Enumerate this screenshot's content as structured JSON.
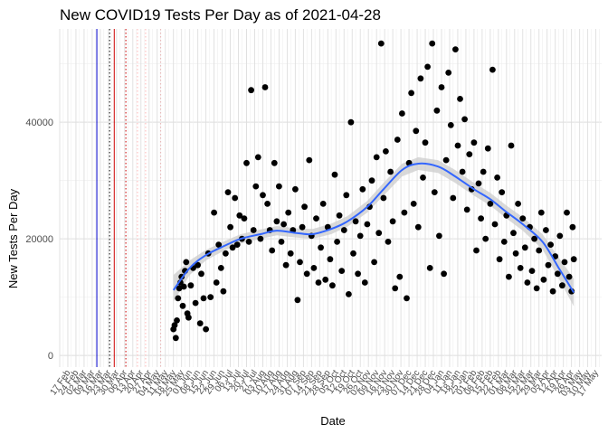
{
  "chart_data": {
    "type": "scatter",
    "title": "New COVID19 Tests Per Day as of 2021-04-28",
    "xlabel": "Date",
    "ylabel": "New Tests Per Day",
    "xlim": [
      "2020-02-10",
      "2021-05-22"
    ],
    "ylim": [
      -2000,
      56000
    ],
    "y_ticks": [
      0,
      20000,
      40000
    ],
    "y_tick_labels": [
      "0",
      "20000",
      "40000"
    ],
    "x_tick_labels": [
      "17 Feb",
      "24 Feb",
      "02 Mar",
      "09 Mar",
      "16 Mar",
      "23 Mar",
      "30 Mar",
      "06 Apr",
      "13 Apr",
      "20 Apr",
      "27 Apr",
      "04 May",
      "11 May",
      "18 May",
      "25 May",
      "01 Jun",
      "08 Jun",
      "15 Jun",
      "22 Jun",
      "29 Jun",
      "06 Jul",
      "13 Jul",
      "20 Jul",
      "27 Jul",
      "03 Aug",
      "10 Aug",
      "17 Aug",
      "24 Aug",
      "31 Aug",
      "07 Sep",
      "14 Sep",
      "21 Sep",
      "28 Sep",
      "05 Oct",
      "12 Oct",
      "19 Oct",
      "26 Oct",
      "02 Nov",
      "09 Nov",
      "16 Nov",
      "23 Nov",
      "30 Nov",
      "07 Dec",
      "14 Dec",
      "21 Dec",
      "28 Dec",
      "04 Jan",
      "11 Jan",
      "18 Jan",
      "25 Jan",
      "01 Feb",
      "08 Feb",
      "15 Feb",
      "22 Feb",
      "01 Mar",
      "08 Mar",
      "15 Mar",
      "22 Mar",
      "29 Mar",
      "05 Apr",
      "12 Apr",
      "19 Apr",
      "26 Apr",
      "03 May",
      "10 May",
      "17 May"
    ],
    "x_tick_start": "2020-02-17",
    "x_tick_step_days": 7,
    "grid": true,
    "legend": "none",
    "vlines": [
      {
        "x": "2020-03-13",
        "color": "#0000cc",
        "style": "solid"
      },
      {
        "x": "2020-03-24",
        "color": "#000000",
        "style": "dotted"
      },
      {
        "x": "2020-03-28",
        "color": "#cc0000",
        "style": "solid"
      },
      {
        "x": "2020-04-07",
        "color": "#cc0000",
        "style": "dotted"
      },
      {
        "x": "2020-04-17",
        "color": "#ffb3b3",
        "style": "dotted"
      },
      {
        "x": "2020-04-24",
        "color": "#ffb3b3",
        "style": "dotted"
      },
      {
        "x": "2020-05-07",
        "color": "#e6b3b3",
        "style": "dotted"
      }
    ],
    "points": [
      {
        "x": "2020-05-18",
        "y": 4500
      },
      {
        "x": "2020-05-19",
        "y": 5200
      },
      {
        "x": "2020-05-20",
        "y": 3000
      },
      {
        "x": "2020-05-21",
        "y": 6000
      },
      {
        "x": "2020-05-22",
        "y": 9800
      },
      {
        "x": "2020-05-23",
        "y": 11500
      },
      {
        "x": "2020-05-24",
        "y": 12500
      },
      {
        "x": "2020-05-25",
        "y": 13500
      },
      {
        "x": "2020-05-26",
        "y": 8500
      },
      {
        "x": "2020-05-27",
        "y": 11800
      },
      {
        "x": "2020-05-28",
        "y": 14500
      },
      {
        "x": "2020-05-29",
        "y": 16000
      },
      {
        "x": "2020-05-30",
        "y": 7200
      },
      {
        "x": "2020-05-31",
        "y": 6500
      },
      {
        "x": "2020-06-02",
        "y": 12000
      },
      {
        "x": "2020-06-04",
        "y": 15000
      },
      {
        "x": "2020-06-06",
        "y": 9000
      },
      {
        "x": "2020-06-08",
        "y": 15500
      },
      {
        "x": "2020-06-10",
        "y": 5500
      },
      {
        "x": "2020-06-11",
        "y": 14000
      },
      {
        "x": "2020-06-13",
        "y": 9800
      },
      {
        "x": "2020-06-15",
        "y": 4500
      },
      {
        "x": "2020-06-17",
        "y": 17500
      },
      {
        "x": "2020-06-19",
        "y": 10000
      },
      {
        "x": "2020-06-22",
        "y": 24500
      },
      {
        "x": "2020-06-24",
        "y": 12500
      },
      {
        "x": "2020-06-26",
        "y": 19000
      },
      {
        "x": "2020-06-28",
        "y": 15000
      },
      {
        "x": "2020-06-30",
        "y": 11000
      },
      {
        "x": "2020-07-02",
        "y": 17500
      },
      {
        "x": "2020-07-04",
        "y": 28000
      },
      {
        "x": "2020-07-06",
        "y": 22000
      },
      {
        "x": "2020-07-08",
        "y": 18500
      },
      {
        "x": "2020-07-10",
        "y": 27000
      },
      {
        "x": "2020-07-12",
        "y": 19000
      },
      {
        "x": "2020-07-14",
        "y": 24000
      },
      {
        "x": "2020-07-16",
        "y": 20000
      },
      {
        "x": "2020-07-18",
        "y": 23500
      },
      {
        "x": "2020-07-20",
        "y": 33000
      },
      {
        "x": "2020-07-22",
        "y": 19500
      },
      {
        "x": "2020-07-24",
        "y": 45500
      },
      {
        "x": "2020-07-26",
        "y": 21500
      },
      {
        "x": "2020-07-28",
        "y": 29000
      },
      {
        "x": "2020-07-30",
        "y": 34000
      },
      {
        "x": "2020-08-01",
        "y": 20000
      },
      {
        "x": "2020-08-03",
        "y": 27500
      },
      {
        "x": "2020-08-05",
        "y": 46000
      },
      {
        "x": "2020-08-07",
        "y": 26000
      },
      {
        "x": "2020-08-09",
        "y": 21500
      },
      {
        "x": "2020-08-11",
        "y": 18000
      },
      {
        "x": "2020-08-13",
        "y": 33000
      },
      {
        "x": "2020-08-15",
        "y": 23000
      },
      {
        "x": "2020-08-17",
        "y": 29000
      },
      {
        "x": "2020-08-19",
        "y": 19500
      },
      {
        "x": "2020-08-21",
        "y": 22500
      },
      {
        "x": "2020-08-23",
        "y": 15500
      },
      {
        "x": "2020-08-25",
        "y": 24500
      },
      {
        "x": "2020-08-27",
        "y": 17500
      },
      {
        "x": "2020-08-29",
        "y": 21500
      },
      {
        "x": "2020-08-31",
        "y": 28500
      },
      {
        "x": "2020-09-02",
        "y": 9500
      },
      {
        "x": "2020-09-04",
        "y": 16000
      },
      {
        "x": "2020-09-06",
        "y": 22000
      },
      {
        "x": "2020-09-08",
        "y": 25500
      },
      {
        "x": "2020-09-10",
        "y": 14000
      },
      {
        "x": "2020-09-12",
        "y": 33500
      },
      {
        "x": "2020-09-14",
        "y": 20500
      },
      {
        "x": "2020-09-16",
        "y": 15000
      },
      {
        "x": "2020-09-18",
        "y": 23500
      },
      {
        "x": "2020-09-20",
        "y": 12500
      },
      {
        "x": "2020-09-22",
        "y": 18500
      },
      {
        "x": "2020-09-24",
        "y": 26000
      },
      {
        "x": "2020-09-26",
        "y": 13000
      },
      {
        "x": "2020-09-28",
        "y": 22000
      },
      {
        "x": "2020-09-30",
        "y": 16500
      },
      {
        "x": "2020-10-02",
        "y": 12000
      },
      {
        "x": "2020-10-04",
        "y": 31000
      },
      {
        "x": "2020-10-06",
        "y": 19500
      },
      {
        "x": "2020-10-08",
        "y": 24000
      },
      {
        "x": "2020-10-10",
        "y": 14500
      },
      {
        "x": "2020-10-12",
        "y": 21500
      },
      {
        "x": "2020-10-14",
        "y": 27500
      },
      {
        "x": "2020-10-16",
        "y": 10500
      },
      {
        "x": "2020-10-18",
        "y": 40000
      },
      {
        "x": "2020-10-20",
        "y": 17500
      },
      {
        "x": "2020-10-22",
        "y": 23000
      },
      {
        "x": "2020-10-24",
        "y": 14000
      },
      {
        "x": "2020-10-26",
        "y": 20500
      },
      {
        "x": "2020-10-28",
        "y": 28500
      },
      {
        "x": "2020-10-30",
        "y": 12500
      },
      {
        "x": "2020-11-01",
        "y": 22500
      },
      {
        "x": "2020-11-03",
        "y": 25500
      },
      {
        "x": "2020-11-05",
        "y": 30000
      },
      {
        "x": "2020-11-07",
        "y": 16000
      },
      {
        "x": "2020-11-09",
        "y": 34000
      },
      {
        "x": "2020-11-11",
        "y": 21000
      },
      {
        "x": "2020-11-13",
        "y": 53500
      },
      {
        "x": "2020-11-15",
        "y": 27000
      },
      {
        "x": "2020-11-17",
        "y": 35000
      },
      {
        "x": "2020-11-19",
        "y": 19500
      },
      {
        "x": "2020-11-21",
        "y": 31500
      },
      {
        "x": "2020-11-23",
        "y": 23000
      },
      {
        "x": "2020-11-25",
        "y": 11500
      },
      {
        "x": "2020-11-27",
        "y": 37000
      },
      {
        "x": "2020-11-29",
        "y": 13500
      },
      {
        "x": "2020-12-01",
        "y": 41500
      },
      {
        "x": "2020-12-03",
        "y": 24500
      },
      {
        "x": "2020-12-05",
        "y": 9800
      },
      {
        "x": "2020-12-07",
        "y": 33000
      },
      {
        "x": "2020-12-09",
        "y": 45000
      },
      {
        "x": "2020-12-11",
        "y": 26000
      },
      {
        "x": "2020-12-13",
        "y": 38500
      },
      {
        "x": "2020-12-15",
        "y": 22000
      },
      {
        "x": "2020-12-17",
        "y": 47500
      },
      {
        "x": "2020-12-19",
        "y": 30500
      },
      {
        "x": "2020-12-21",
        "y": 36500
      },
      {
        "x": "2020-12-23",
        "y": 49500
      },
      {
        "x": "2020-12-25",
        "y": 15000
      },
      {
        "x": "2020-12-27",
        "y": 53500
      },
      {
        "x": "2020-12-29",
        "y": 28000
      },
      {
        "x": "2020-12-31",
        "y": 42000
      },
      {
        "x": "2021-01-02",
        "y": 20500
      },
      {
        "x": "2021-01-04",
        "y": 46000
      },
      {
        "x": "2021-01-06",
        "y": 14000
      },
      {
        "x": "2021-01-08",
        "y": 33500
      },
      {
        "x": "2021-01-10",
        "y": 48500
      },
      {
        "x": "2021-01-12",
        "y": 39500
      },
      {
        "x": "2021-01-14",
        "y": 27000
      },
      {
        "x": "2021-01-16",
        "y": 52500
      },
      {
        "x": "2021-01-18",
        "y": 36000
      },
      {
        "x": "2021-01-20",
        "y": 44000
      },
      {
        "x": "2021-01-22",
        "y": 31500
      },
      {
        "x": "2021-01-24",
        "y": 40500
      },
      {
        "x": "2021-01-26",
        "y": 25000
      },
      {
        "x": "2021-01-28",
        "y": 34500
      },
      {
        "x": "2021-01-30",
        "y": 28500
      },
      {
        "x": "2021-02-01",
        "y": 36500
      },
      {
        "x": "2021-02-03",
        "y": 18000
      },
      {
        "x": "2021-02-05",
        "y": 29500
      },
      {
        "x": "2021-02-07",
        "y": 23500
      },
      {
        "x": "2021-02-09",
        "y": 31500
      },
      {
        "x": "2021-02-11",
        "y": 20000
      },
      {
        "x": "2021-02-13",
        "y": 35500
      },
      {
        "x": "2021-02-15",
        "y": 26000
      },
      {
        "x": "2021-02-17",
        "y": 49000
      },
      {
        "x": "2021-02-19",
        "y": 22500
      },
      {
        "x": "2021-02-21",
        "y": 30500
      },
      {
        "x": "2021-02-23",
        "y": 16500
      },
      {
        "x": "2021-02-25",
        "y": 28000
      },
      {
        "x": "2021-02-27",
        "y": 19500
      },
      {
        "x": "2021-03-01",
        "y": 24000
      },
      {
        "x": "2021-03-03",
        "y": 13500
      },
      {
        "x": "2021-03-05",
        "y": 36000
      },
      {
        "x": "2021-03-07",
        "y": 21000
      },
      {
        "x": "2021-03-09",
        "y": 17500
      },
      {
        "x": "2021-03-11",
        "y": 26000
      },
      {
        "x": "2021-03-13",
        "y": 15000
      },
      {
        "x": "2021-03-15",
        "y": 23500
      },
      {
        "x": "2021-03-17",
        "y": 18500
      },
      {
        "x": "2021-03-19",
        "y": 12500
      },
      {
        "x": "2021-03-21",
        "y": 22000
      },
      {
        "x": "2021-03-23",
        "y": 14500
      },
      {
        "x": "2021-03-25",
        "y": 20000
      },
      {
        "x": "2021-03-27",
        "y": 11500
      },
      {
        "x": "2021-03-29",
        "y": 18000
      },
      {
        "x": "2021-03-31",
        "y": 24500
      },
      {
        "x": "2021-04-02",
        "y": 13000
      },
      {
        "x": "2021-04-04",
        "y": 21500
      },
      {
        "x": "2021-04-06",
        "y": 15500
      },
      {
        "x": "2021-04-08",
        "y": 19000
      },
      {
        "x": "2021-04-10",
        "y": 11000
      },
      {
        "x": "2021-04-12",
        "y": 17000
      },
      {
        "x": "2021-04-14",
        "y": 14000
      },
      {
        "x": "2021-04-16",
        "y": 20500
      },
      {
        "x": "2021-04-18",
        "y": 12000
      },
      {
        "x": "2021-04-20",
        "y": 16000
      },
      {
        "x": "2021-04-22",
        "y": 24500
      },
      {
        "x": "2021-04-24",
        "y": 13500
      },
      {
        "x": "2021-04-26",
        "y": 11000
      },
      {
        "x": "2021-04-27",
        "y": 22000
      },
      {
        "x": "2021-04-28",
        "y": 16500
      }
    ],
    "trend": {
      "color": "#3366ff",
      "band_color": "#cccccc",
      "points": [
        {
          "x": "2020-05-18",
          "y": 11200,
          "lo": 9200,
          "hi": 13800
        },
        {
          "x": "2020-06-01",
          "y": 15000,
          "lo": 13800,
          "hi": 16300
        },
        {
          "x": "2020-06-15",
          "y": 17200,
          "lo": 16300,
          "hi": 18100
        },
        {
          "x": "2020-07-01",
          "y": 18800,
          "lo": 18000,
          "hi": 19600
        },
        {
          "x": "2020-07-15",
          "y": 20000,
          "lo": 19200,
          "hi": 20800
        },
        {
          "x": "2020-08-01",
          "y": 20800,
          "lo": 20000,
          "hi": 21600
        },
        {
          "x": "2020-08-15",
          "y": 21400,
          "lo": 20600,
          "hi": 22200
        },
        {
          "x": "2020-09-01",
          "y": 21000,
          "lo": 20200,
          "hi": 21800
        },
        {
          "x": "2020-09-15",
          "y": 20800,
          "lo": 20000,
          "hi": 21700
        },
        {
          "x": "2020-10-01",
          "y": 21700,
          "lo": 20800,
          "hi": 22600
        },
        {
          "x": "2020-10-15",
          "y": 23000,
          "lo": 22100,
          "hi": 23900
        },
        {
          "x": "2020-11-01",
          "y": 25500,
          "lo": 24500,
          "hi": 26500
        },
        {
          "x": "2020-11-15",
          "y": 28500,
          "lo": 27400,
          "hi": 29600
        },
        {
          "x": "2020-12-01",
          "y": 31800,
          "lo": 30700,
          "hi": 32900
        },
        {
          "x": "2020-12-15",
          "y": 32900,
          "lo": 31800,
          "hi": 34000
        },
        {
          "x": "2021-01-01",
          "y": 32400,
          "lo": 31300,
          "hi": 33500
        },
        {
          "x": "2021-01-15",
          "y": 30800,
          "lo": 29700,
          "hi": 31900
        },
        {
          "x": "2021-02-01",
          "y": 28500,
          "lo": 27400,
          "hi": 29600
        },
        {
          "x": "2021-02-15",
          "y": 26800,
          "lo": 25700,
          "hi": 27900
        },
        {
          "x": "2021-03-01",
          "y": 24600,
          "lo": 23500,
          "hi": 25700
        },
        {
          "x": "2021-03-15",
          "y": 22500,
          "lo": 21400,
          "hi": 23700
        },
        {
          "x": "2021-04-01",
          "y": 19500,
          "lo": 18200,
          "hi": 20800
        },
        {
          "x": "2021-04-15",
          "y": 15000,
          "lo": 13200,
          "hi": 16800
        },
        {
          "x": "2021-04-28",
          "y": 10800,
          "lo": 8400,
          "hi": 13200
        }
      ]
    }
  }
}
